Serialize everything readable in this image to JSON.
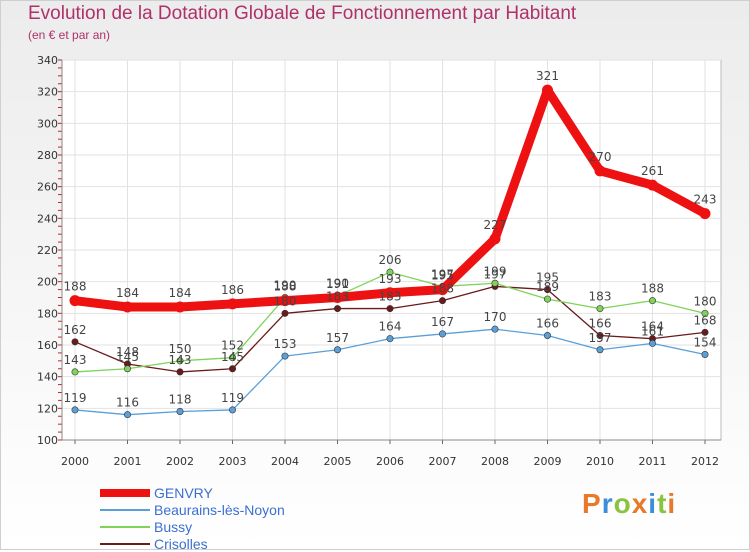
{
  "chart_data": {
    "type": "line",
    "title": "Evolution de la Dotation Globale de Fonctionnement par Habitant",
    "subtitle": "(en € et par an)",
    "xlabel": "",
    "ylabel": "",
    "categories": [
      "2000",
      "2001",
      "2002",
      "2003",
      "2004",
      "2005",
      "2006",
      "2007",
      "2008",
      "2009",
      "2010",
      "2011",
      "2012"
    ],
    "ylim": [
      100,
      340
    ],
    "yticks": [
      100,
      120,
      140,
      160,
      180,
      200,
      220,
      240,
      260,
      280,
      300,
      320,
      340
    ],
    "grid": true,
    "legend_position": "bottom-left",
    "series": [
      {
        "name": "Crisolles",
        "color": "#6a1a1a",
        "values": [
          162,
          148,
          143,
          145,
          180,
          183,
          183,
          188,
          197,
          195,
          166,
          164,
          168
        ]
      },
      {
        "name": "Bussy",
        "color": "#7fd35a",
        "values": [
          143,
          145,
          150,
          152,
          190,
          191,
          206,
          197,
          199,
          189,
          183,
          188,
          180
        ]
      },
      {
        "name": "Beaurains-lès-Noyon",
        "color": "#5a9fd8",
        "values": [
          119,
          116,
          118,
          119,
          153,
          157,
          164,
          167,
          170,
          166,
          157,
          161,
          154
        ]
      },
      {
        "name": "GENVRY",
        "color": "#ee1111",
        "values": [
          188,
          184,
          184,
          186,
          188,
          190,
          193,
          195,
          227,
          321,
          270,
          261,
          243
        ]
      }
    ]
  },
  "legend": {
    "items": [
      {
        "label": "GENVRY",
        "color": "#ee1111"
      },
      {
        "label": "Beaurains-lès-Noyon",
        "color": "#5a9fd8"
      },
      {
        "label": "Bussy",
        "color": "#7fd35a"
      },
      {
        "label": "Crisolles",
        "color": "#6a1a1a"
      }
    ]
  },
  "logo": {
    "text": "Proxiti",
    "letters": [
      {
        "ch": "P",
        "color": "#e8782a"
      },
      {
        "ch": "r",
        "color": "#3b8fd8"
      },
      {
        "ch": "o",
        "color": "#8ac43f"
      },
      {
        "ch": "x",
        "color": "#e8782a"
      },
      {
        "ch": "i",
        "color": "#3b8fd8"
      },
      {
        "ch": "t",
        "color": "#8ac43f"
      },
      {
        "ch": "i",
        "color": "#e8782a"
      }
    ]
  }
}
